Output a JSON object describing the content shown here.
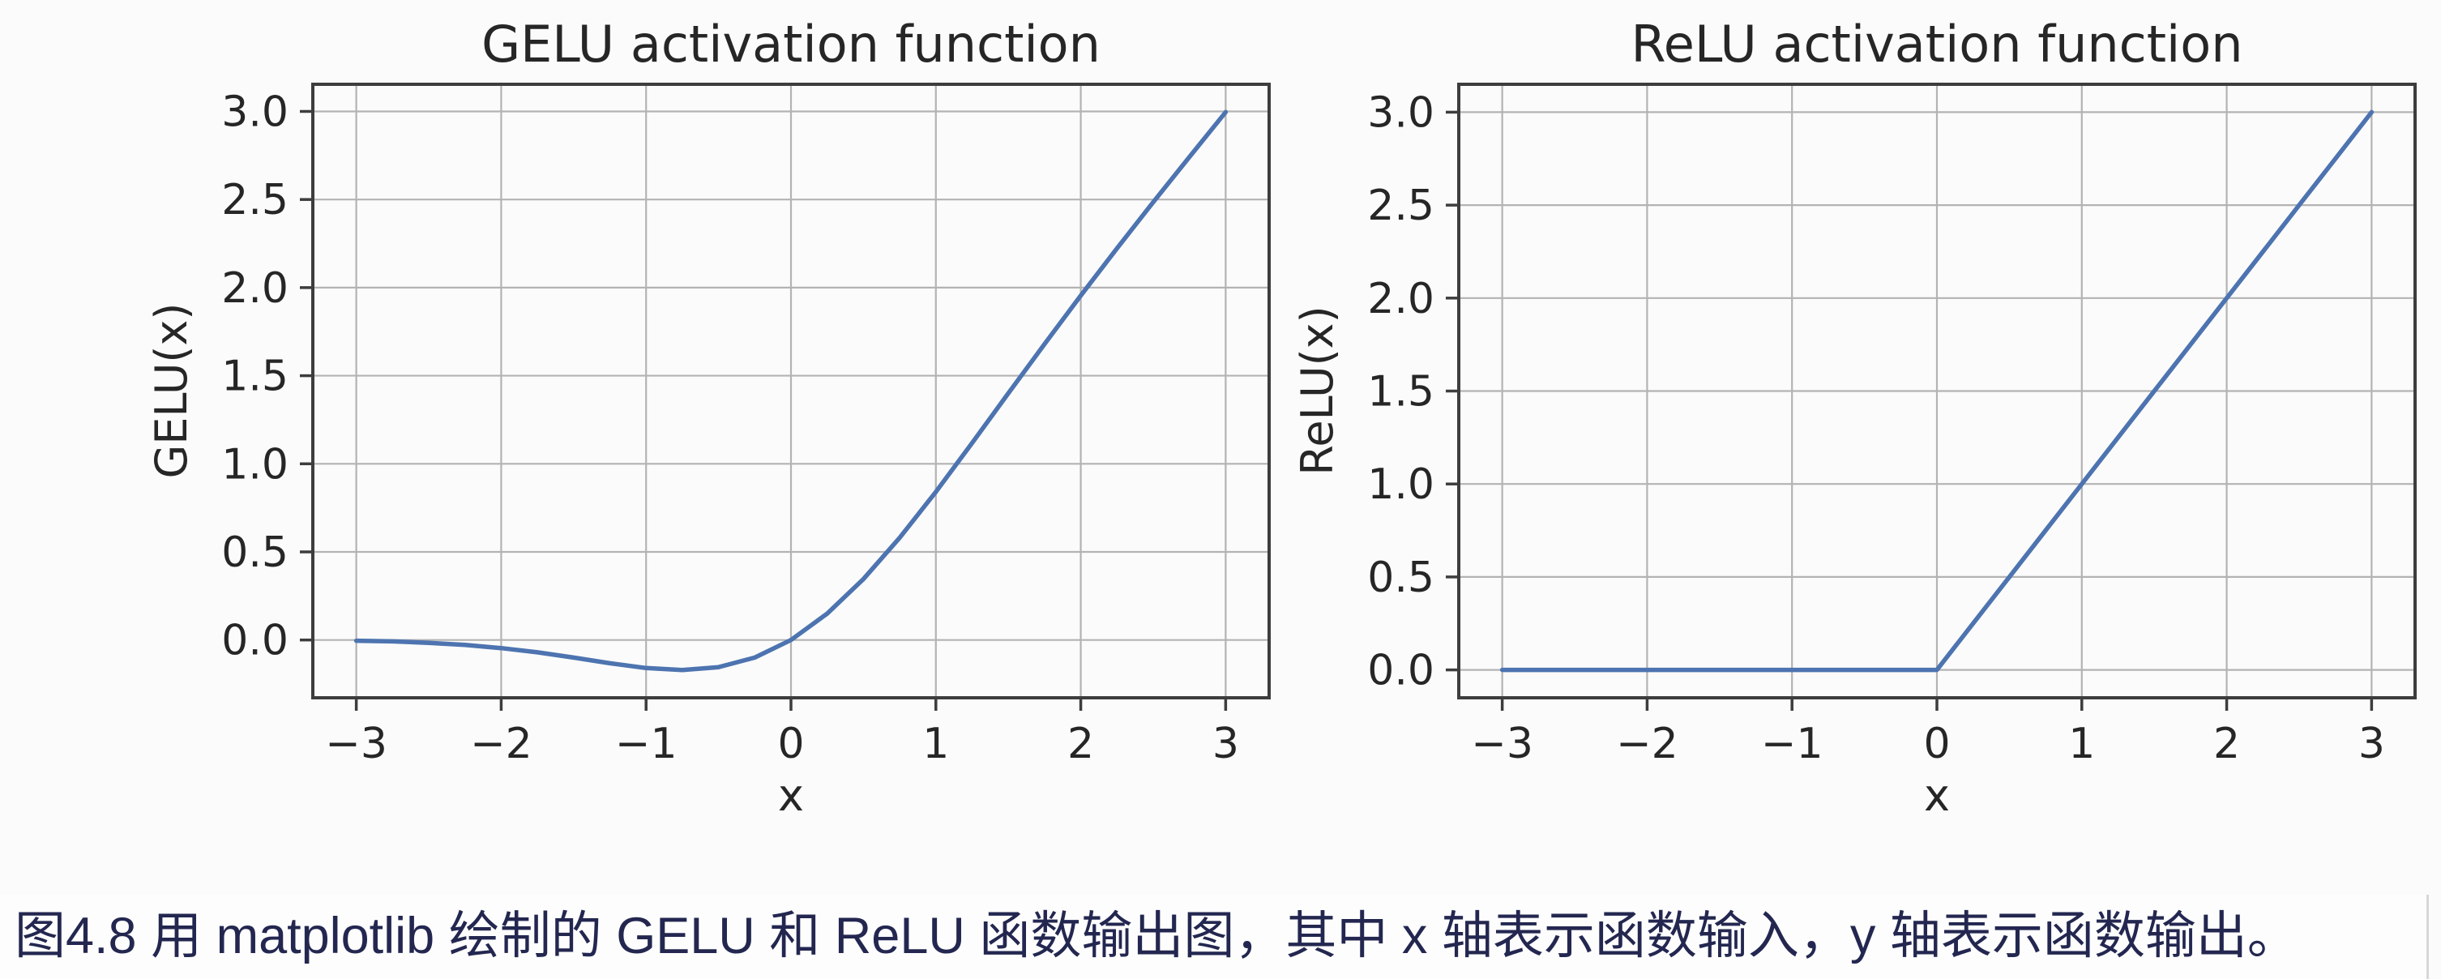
{
  "figure": {
    "caption": "图4.8 用 matplotlib 绘制的 GELU 和 ReLU 函数输出图，其中 x 轴表示函数输入，y 轴表示函数输出。"
  },
  "colors": {
    "line": "#4d74b0",
    "grid": "#b3b3b3",
    "spine": "#3d3d3d",
    "plot_text": "#262626",
    "caption_text": "#232750",
    "background": "#fbfbfb"
  },
  "chart_data": [
    {
      "type": "line",
      "title": "GELU activation function",
      "xlabel": "x",
      "ylabel": "GELU(x)",
      "xlim": [
        -3.3,
        3.3
      ],
      "ylim": [
        -0.328,
        3.154
      ],
      "grid": true,
      "legend": false,
      "xticks": {
        "values": [
          -3,
          -2,
          -1,
          0,
          1,
          2,
          3
        ],
        "labels": [
          "−3",
          "−2",
          "−1",
          "0",
          "1",
          "2",
          "3"
        ]
      },
      "yticks": {
        "values": [
          0,
          0.5,
          1,
          1.5,
          2,
          2.5,
          3
        ],
        "labels": [
          "0.0",
          "0.5",
          "1.0",
          "1.5",
          "2.0",
          "2.5",
          "3.0"
        ]
      },
      "series": [
        {
          "name": "GELU",
          "color": "#4d74b0",
          "x": [
            -3,
            -2.75,
            -2.5,
            -2.25,
            -2,
            -1.75,
            -1.5,
            -1.25,
            -1,
            -0.75,
            -0.5,
            -0.25,
            0,
            0.25,
            0.5,
            0.75,
            1,
            1.25,
            1.5,
            1.75,
            2,
            2.25,
            2.5,
            2.75,
            3
          ],
          "y": [
            -0.004,
            -0.008,
            -0.016,
            -0.028,
            -0.046,
            -0.07,
            -0.1,
            -0.132,
            -0.159,
            -0.17,
            -0.154,
            -0.1,
            0,
            0.15,
            0.346,
            0.58,
            0.841,
            1.118,
            1.4,
            1.68,
            1.955,
            2.223,
            2.485,
            2.742,
            2.996
          ]
        }
      ]
    },
    {
      "type": "line",
      "title": "ReLU activation function",
      "xlabel": "x",
      "ylabel": "ReLU(x)",
      "xlim": [
        -3.3,
        3.3
      ],
      "ylim": [
        -0.15,
        3.15
      ],
      "grid": true,
      "legend": false,
      "xticks": {
        "values": [
          -3,
          -2,
          -1,
          0,
          1,
          2,
          3
        ],
        "labels": [
          "−3",
          "−2",
          "−1",
          "0",
          "1",
          "2",
          "3"
        ]
      },
      "yticks": {
        "values": [
          0,
          0.5,
          1,
          1.5,
          2,
          2.5,
          3
        ],
        "labels": [
          "0.0",
          "0.5",
          "1.0",
          "1.5",
          "2.0",
          "2.5",
          "3.0"
        ]
      },
      "series": [
        {
          "name": "ReLU",
          "color": "#4d74b0",
          "x": [
            -3,
            -2.75,
            -2.5,
            -2.25,
            -2,
            -1.75,
            -1.5,
            -1.25,
            -1,
            -0.75,
            -0.5,
            -0.25,
            0,
            0.25,
            0.5,
            0.75,
            1,
            1.25,
            1.5,
            1.75,
            2,
            2.25,
            2.5,
            2.75,
            3
          ],
          "y": [
            0,
            0,
            0,
            0,
            0,
            0,
            0,
            0,
            0,
            0,
            0,
            0,
            0,
            0.25,
            0.5,
            0.75,
            1,
            1.25,
            1.5,
            1.75,
            2,
            2.25,
            2.5,
            2.75,
            3
          ]
        }
      ]
    }
  ]
}
